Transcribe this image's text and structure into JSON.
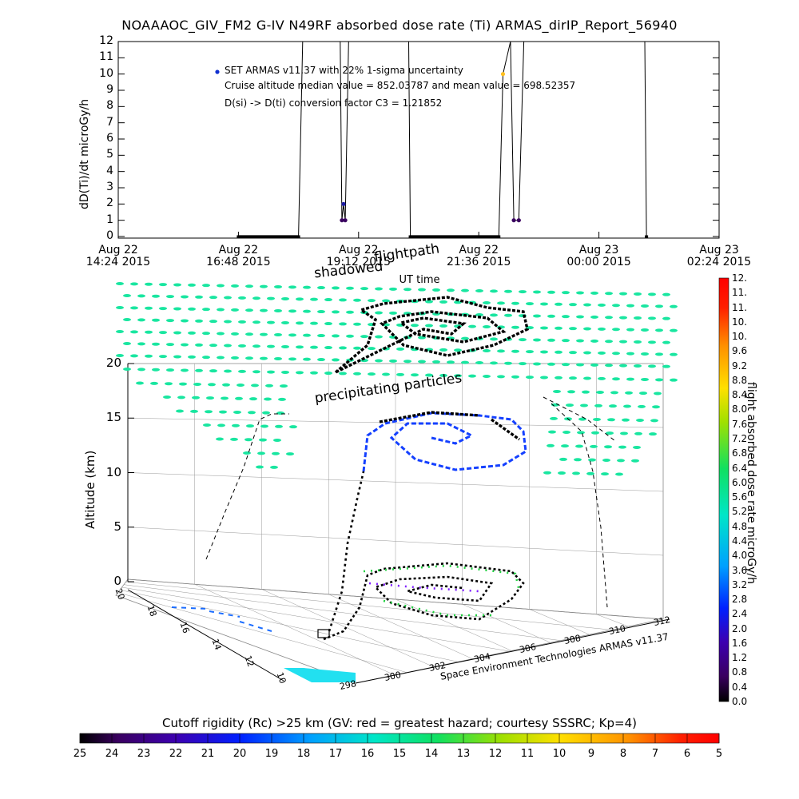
{
  "title": "NOAAAOC_GIV_FM2 G-IV    N49RF  absorbed dose rate (Ti) ARMAS_dirIP_Report_56940",
  "colors": {
    "background": "#ffffff",
    "axes": "#000000",
    "grid_dot": "#19e6a0",
    "series": "#000000"
  },
  "chart_data": [
    {
      "type": "line",
      "ylabel": "dD(Ti)/dt microGy/h",
      "xlabel": "UT time",
      "ylim": [
        0,
        12
      ],
      "yticks": [
        "0",
        "1",
        "2",
        "3",
        "4",
        "5",
        "6",
        "7",
        "8",
        "9",
        "10",
        "11",
        "12"
      ],
      "xticks": [
        {
          "line1": "Aug 22",
          "line2": "14:24 2015"
        },
        {
          "line1": "Aug 22",
          "line2": "16:48 2015"
        },
        {
          "line1": "Aug 22",
          "line2": "19:12 2015"
        },
        {
          "line1": "Aug 22",
          "line2": "21:36 2015"
        },
        {
          "line1": "Aug 23",
          "line2": "00:00 2015"
        },
        {
          "line1": "Aug 23",
          "line2": "02:24 2015"
        }
      ],
      "annotations": [
        "SET ARMAS v11.37 with 22% 1-sigma uncertainty",
        "Cruise altitude median value = 852.03787 and mean value = 698.52357",
        "D(si) -> D(ti) conversion factor C3 = 1.21852"
      ],
      "series": [
        {
          "x_hours_labels": "UT",
          "points": [
            {
              "t": "Aug 22 16:48 2015",
              "y": 0
            },
            {
              "t": "Aug 22 18:00 2015",
              "y": 0
            },
            {
              "t": "Aug 22 18:05 2015",
              "y": 12
            },
            {
              "t": "Aug 22 18:50 2015",
              "y": 12
            },
            {
              "t": "Aug 22 18:52 2015",
              "y": 1
            },
            {
              "t": "Aug 22 18:54 2015",
              "y": 2
            },
            {
              "t": "Aug 22 18:56 2015",
              "y": 1
            },
            {
              "t": "Aug 22 19:00 2015",
              "y": 12
            },
            {
              "t": "Aug 22 20:12 2015",
              "y": 12
            },
            {
              "t": "Aug 22 20:14 2015",
              "y": 0
            },
            {
              "t": "Aug 22 22:00 2015",
              "y": 0
            },
            {
              "t": "Aug 22 22:05 2015",
              "y": 10
            },
            {
              "t": "Aug 22 22:14 2015",
              "y": 12
            },
            {
              "t": "Aug 22 22:18 2015",
              "y": 1
            },
            {
              "t": "Aug 22 22:24 2015",
              "y": 1
            },
            {
              "t": "Aug 22 22:30 2015",
              "y": 12
            },
            {
              "t": "Aug 23 00:55 2015",
              "y": 12
            },
            {
              "t": "Aug 23 00:57 2015",
              "y": 0
            }
          ]
        }
      ]
    },
    {
      "type": "scatter",
      "title_labels": [
        "shadowed",
        "flightpath",
        "precipitating particles"
      ],
      "zlabel": "Altitude (km)",
      "zticks": [
        "0",
        "5",
        "10",
        "15",
        "20"
      ],
      "lat_ticks": [
        "20",
        "18",
        "16",
        "14",
        "12",
        "10"
      ],
      "lon_ticks": [
        "298",
        "300",
        "302",
        "304",
        "306",
        "308",
        "310",
        "312"
      ],
      "footer": "Space Environment Technologies ARMAS v11.37"
    },
    {
      "type": "heatmap",
      "role": "colorbar-right",
      "label": "flight absorbed dose rate microGy/h",
      "ticks": [
        "12.",
        "11.",
        "11.",
        "10.",
        "10.",
        "9.6",
        "9.2",
        "8.8",
        "8.4",
        "8.0",
        "7.6",
        "7.2",
        "6.8",
        "6.4",
        "6.0",
        "5.6",
        "5.2",
        "4.8",
        "4.4",
        "4.0",
        "3.6",
        "3.2",
        "2.8",
        "2.4",
        "2.0",
        "1.6",
        "1.2",
        "0.8",
        "0.4",
        "0.0"
      ]
    },
    {
      "type": "heatmap",
      "role": "colorbar-bottom",
      "label": "Cutoff rigidity (Rc) >25 km (GV: red = greatest hazard; courtesy SSSRC; Kp=4)",
      "ticks": [
        "25",
        "24",
        "23",
        "22",
        "21",
        "20",
        "19",
        "18",
        "17",
        "16",
        "15",
        "14",
        "13",
        "12",
        "11",
        "10",
        "9",
        "8",
        "7",
        "6",
        "5"
      ]
    }
  ]
}
